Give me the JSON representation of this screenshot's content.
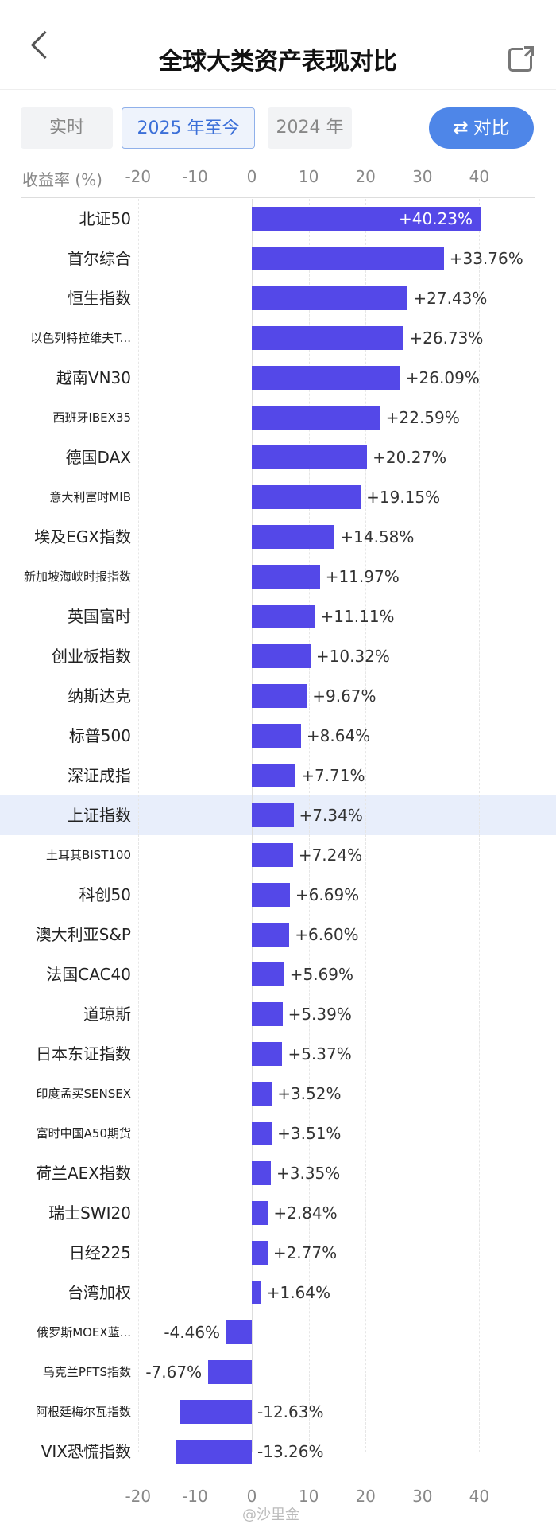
{
  "header": {
    "title": "全球大类资产表现对比"
  },
  "tabs": [
    {
      "label": "实时",
      "active": false
    },
    {
      "label": "2025 年至今",
      "active": true
    },
    {
      "label": "2024 年",
      "active": false
    }
  ],
  "compare_button": {
    "icon": "swap-icon",
    "label": "对比"
  },
  "axis": {
    "unit_label": "收益率 (%)",
    "ticks": [
      "-20",
      "-10",
      "0",
      "10",
      "20",
      "30",
      "40"
    ],
    "bottom_ticks": [
      "-20",
      "-10",
      "0",
      "10",
      "20",
      "30",
      "40"
    ]
  },
  "watermark": "@沙里金",
  "colors": {
    "bar": "#5448e8",
    "accent": "#4e86e8",
    "highlight": "#e8eefb"
  },
  "chart_data": {
    "type": "bar",
    "orientation": "horizontal",
    "xlim": [
      -20,
      40
    ],
    "grid": true,
    "highlighted_category": "上证指数",
    "categories": [
      "北证50",
      "首尔综合",
      "恒生指数",
      "以色列特拉维夫T...",
      "越南VN30",
      "西班牙IBEX35",
      "德国DAX",
      "意大利富时MIB",
      "埃及EGX指数",
      "新加坡海峡时报指数",
      "英国富时",
      "创业板指数",
      "纳斯达克",
      "标普500",
      "深证成指",
      "上证指数",
      "土耳其BIST100",
      "科创50",
      "澳大利亚S&P",
      "法国CAC40",
      "道琼斯",
      "日本东证指数",
      "印度孟买SENSEX",
      "富时中国A50期货",
      "荷兰AEX指数",
      "瑞士SWI20",
      "日经225",
      "台湾加权",
      "俄罗斯MOEX蓝...",
      "乌克兰PFTS指数",
      "阿根廷梅尔瓦指数",
      "VIX恐慌指数"
    ],
    "values": [
      40.23,
      33.76,
      27.43,
      26.73,
      26.09,
      22.59,
      20.27,
      19.15,
      14.58,
      11.97,
      11.11,
      10.32,
      9.67,
      8.64,
      7.71,
      7.34,
      7.24,
      6.69,
      6.6,
      5.69,
      5.39,
      5.37,
      3.52,
      3.51,
      3.35,
      2.84,
      2.77,
      1.64,
      -4.46,
      -7.67,
      -12.63,
      -13.26
    ],
    "labels": [
      "+40.23%",
      "+33.76%",
      "+27.43%",
      "+26.73%",
      "+26.09%",
      "+22.59%",
      "+20.27%",
      "+19.15%",
      "+14.58%",
      "+11.97%",
      "+11.11%",
      "+10.32%",
      "+9.67%",
      "+8.64%",
      "+7.71%",
      "+7.34%",
      "+7.24%",
      "+6.69%",
      "+6.60%",
      "+5.69%",
      "+5.39%",
      "+5.37%",
      "+3.52%",
      "+3.51%",
      "+3.35%",
      "+2.84%",
      "+2.77%",
      "+1.64%",
      "-4.46%",
      "-7.67%",
      "-12.63%",
      "-13.26%"
    ]
  }
}
